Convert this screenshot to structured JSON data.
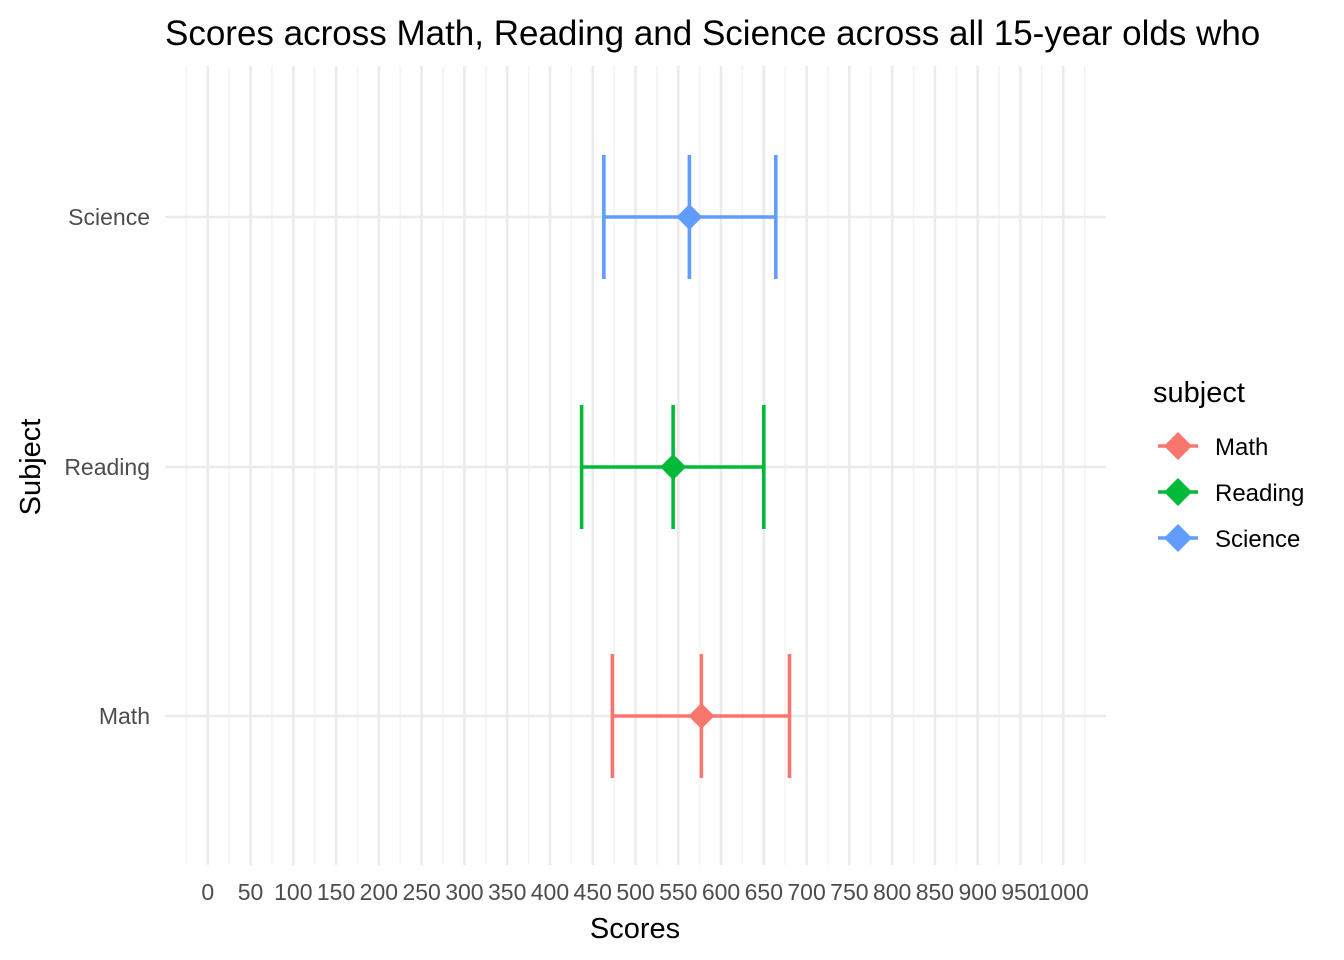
{
  "chart_data": {
    "type": "errorbar",
    "title": "Scores across Math, Reading and Science across all 15-year olds who",
    "xlabel": "Scores",
    "ylabel": "Subject",
    "xlim": [
      -50,
      1050
    ],
    "x_ticks": [
      0,
      50,
      100,
      150,
      200,
      250,
      300,
      350,
      400,
      450,
      500,
      550,
      600,
      650,
      700,
      750,
      800,
      850,
      900,
      950,
      1000
    ],
    "x_tick_labels": [
      "0",
      "50",
      "100",
      "150",
      "200",
      "250",
      "300",
      "350",
      "400",
      "450",
      "500",
      "550",
      "600",
      "650",
      "700",
      "750",
      "800",
      "850",
      "900",
      "950",
      "1000"
    ],
    "categories": [
      "Math",
      "Reading",
      "Science"
    ],
    "grid": true,
    "legend": {
      "title": "subject",
      "position": "right"
    },
    "series": [
      {
        "name": "Math",
        "color": "#F8766D",
        "lower": 473,
        "mean": 577,
        "upper": 680
      },
      {
        "name": "Reading",
        "color": "#00BA38",
        "lower": 437,
        "mean": 544,
        "upper": 650
      },
      {
        "name": "Science",
        "color": "#619CFF",
        "lower": 463,
        "mean": 563,
        "upper": 664
      }
    ]
  }
}
